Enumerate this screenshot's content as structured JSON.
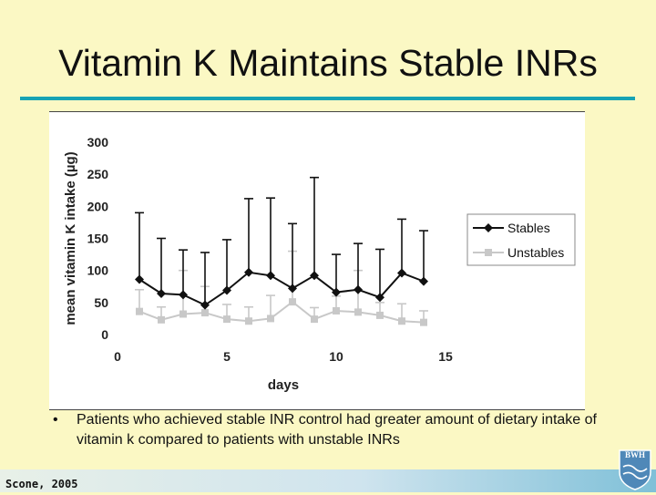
{
  "slide": {
    "title": "Vitamin K Maintains Stable INRs",
    "bullet": "Patients who achieved stable INR control had greater amount of dietary intake of vitamin k compared to patients with unstable INRs",
    "citation": "Scone, 2005",
    "logo_text": "BWH"
  },
  "colors": {
    "background": "#fbf8c4",
    "accent_rule": "#17a3b4",
    "stables": "#111111",
    "unstables": "#c8c8c8"
  },
  "chart_data": {
    "type": "line",
    "title": "",
    "xlabel": "days",
    "ylabel": "mean vitamin K intake (µg)",
    "xlim": [
      0,
      15
    ],
    "ylim": [
      0,
      300
    ],
    "xticks": [
      "0",
      "5",
      "10",
      "15"
    ],
    "yticks": [
      "0",
      "50",
      "100",
      "150",
      "200",
      "250",
      "300"
    ],
    "grid": false,
    "legend_position": "right",
    "x": [
      1,
      2,
      3,
      4,
      5,
      6,
      7,
      8,
      9,
      10,
      11,
      12,
      13,
      14
    ],
    "series": [
      {
        "name": "Stables",
        "values": [
          86,
          64,
          62,
          46,
          69,
          97,
          92,
          72,
          92,
          66,
          70,
          58,
          96,
          83
        ],
        "error_upper": [
          190,
          150,
          132,
          128,
          148,
          212,
          213,
          173,
          245,
          125,
          142,
          133,
          180,
          162
        ]
      },
      {
        "name": "Unstables",
        "values": [
          36,
          23,
          32,
          34,
          24,
          21,
          25,
          51,
          24,
          37,
          35,
          30,
          21,
          19
        ],
        "error_upper": [
          70,
          43,
          100,
          75,
          47,
          43,
          61,
          130,
          42,
          60,
          100,
          50,
          48,
          37
        ]
      }
    ]
  }
}
